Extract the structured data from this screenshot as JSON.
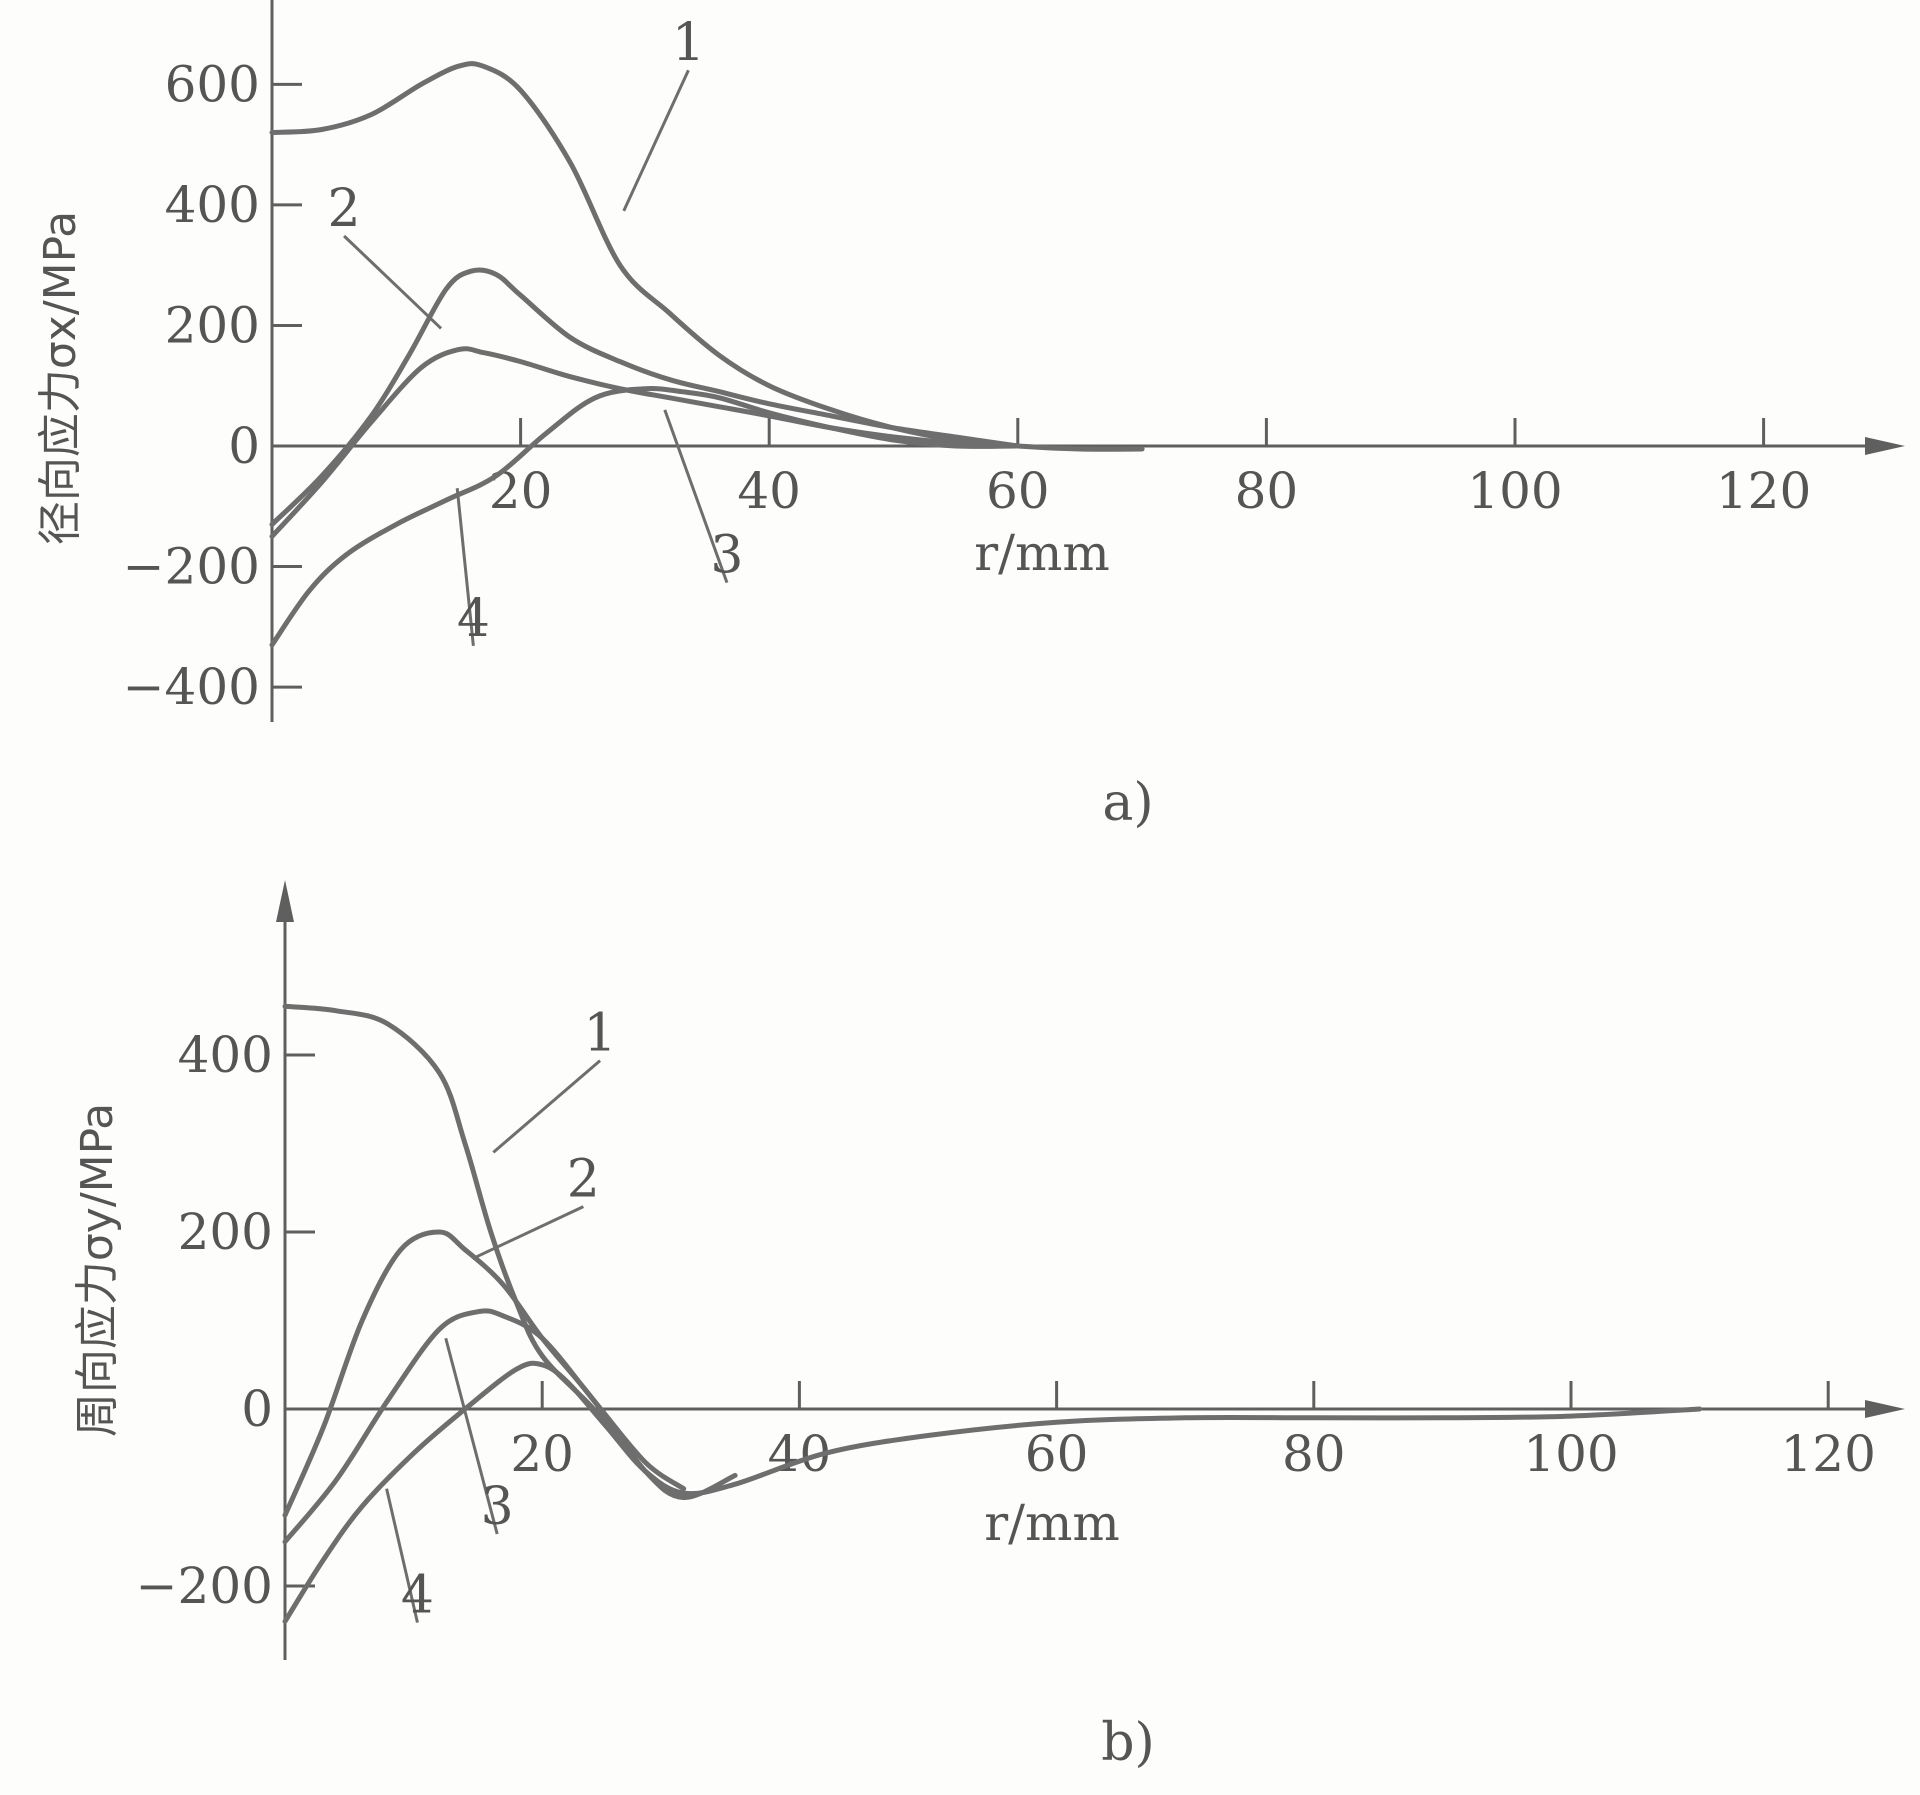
{
  "chart_data": [
    {
      "type": "line",
      "panel_label": "a)",
      "xlabel": "r/mm",
      "ylabel": "径向应力σx/MPa",
      "x_ticks": [
        20,
        40,
        60,
        80,
        100,
        120
      ],
      "y_ticks": [
        -400,
        -200,
        0,
        200,
        400,
        600
      ],
      "x_tick_labels": [
        "20",
        "40",
        "60",
        "80",
        "100",
        "120"
      ],
      "y_tick_labels": [
        "−400",
        "−200",
        "0",
        "200",
        "400",
        "600"
      ],
      "xlim": [
        0,
        130
      ],
      "ylim": [
        -450,
        650
      ],
      "series": [
        {
          "name": "1",
          "x": [
            0,
            4,
            8,
            12,
            15,
            17,
            20,
            24,
            28,
            32,
            36,
            40,
            45,
            50,
            55,
            60,
            65,
            70
          ],
          "y": [
            520,
            525,
            550,
            600,
            630,
            630,
            590,
            470,
            300,
            220,
            150,
            100,
            60,
            30,
            10,
            0,
            -5,
            -5
          ]
        },
        {
          "name": "2",
          "x": [
            0,
            4,
            8,
            11,
            14,
            16,
            18,
            20,
            24,
            28,
            32,
            36,
            40,
            45,
            50,
            55,
            60
          ],
          "y": [
            -130,
            -50,
            50,
            150,
            260,
            290,
            285,
            250,
            180,
            140,
            110,
            90,
            70,
            50,
            30,
            15,
            0
          ]
        },
        {
          "name": "3",
          "x": [
            0,
            4,
            8,
            12,
            15,
            17,
            20,
            24,
            28,
            32,
            36,
            40,
            45,
            50,
            55,
            60
          ],
          "y": [
            -150,
            -60,
            40,
            130,
            160,
            155,
            140,
            115,
            95,
            80,
            65,
            50,
            30,
            15,
            5,
            0
          ]
        },
        {
          "name": "4",
          "x": [
            0,
            3,
            6,
            10,
            14,
            18,
            22,
            26,
            30,
            33,
            36,
            40,
            45,
            50,
            55,
            60
          ],
          "y": [
            -330,
            -240,
            -180,
            -130,
            -90,
            -50,
            20,
            80,
            95,
            90,
            80,
            55,
            30,
            10,
            0,
            0
          ]
        }
      ],
      "annotations": [
        {
          "text": "1",
          "x": 33.5,
          "y": 640,
          "to_x": 28.3,
          "to_y": 390
        },
        {
          "text": "2",
          "x": 5.8,
          "y": 365,
          "to_x": 13.6,
          "to_y": 195
        },
        {
          "text": "3",
          "x": 36.6,
          "y": -210,
          "to_x": 31.6,
          "to_y": 60
        },
        {
          "text": "4",
          "x": 16.2,
          "y": -315,
          "to_x": 14.9,
          "to_y": -70
        }
      ]
    },
    {
      "type": "line",
      "panel_label": "b)",
      "xlabel": "r/mm",
      "ylabel": "周向应力σy/MPa",
      "x_ticks": [
        20,
        40,
        60,
        80,
        100,
        120
      ],
      "y_ticks": [
        -200,
        0,
        200,
        400
      ],
      "x_tick_labels": [
        "20",
        "40",
        "60",
        "80",
        "100",
        "120"
      ],
      "y_tick_labels": [
        "−200",
        "0",
        "200",
        "400"
      ],
      "xlim": [
        0,
        130
      ],
      "ylim": [
        -300,
        600
      ],
      "series": [
        {
          "name": "1",
          "x": [
            0,
            4,
            8,
            12,
            14,
            16,
            18,
            20,
            24,
            28,
            31
          ],
          "y": [
            455,
            450,
            435,
            380,
            300,
            200,
            120,
            60,
            0,
            -70,
            -100
          ]
        },
        {
          "name": "2",
          "x": [
            0,
            3,
            6,
            9,
            12,
            14,
            17,
            20,
            24,
            28,
            31,
            35
          ],
          "y": [
            -120,
            -20,
            100,
            180,
            200,
            180,
            140,
            80,
            10,
            -70,
            -100,
            -75
          ]
        },
        {
          "name": "3",
          "x": [
            0,
            4,
            8,
            12,
            15,
            17,
            20,
            24,
            28,
            31
          ],
          "y": [
            -150,
            -80,
            10,
            90,
            110,
            105,
            80,
            10,
            -60,
            -90
          ]
        },
        {
          "name": "4",
          "x": [
            0,
            3,
            6,
            10,
            14,
            18,
            20,
            22,
            25,
            28,
            31,
            35,
            42,
            50,
            60,
            70,
            80,
            90,
            100,
            110
          ],
          "y": [
            -240,
            -170,
            -110,
            -50,
            0,
            45,
            50,
            30,
            -20,
            -70,
            -95,
            -85,
            -50,
            -30,
            -15,
            -10,
            -10,
            -10,
            -8,
            0
          ]
        }
      ],
      "annotations": [
        {
          "text": "1",
          "x": 24.5,
          "y": 405,
          "to_x": 16.2,
          "to_y": 290
        },
        {
          "text": "2",
          "x": 23.2,
          "y": 240,
          "to_x": 14.6,
          "to_y": 170
        },
        {
          "text": "3",
          "x": 16.5,
          "y": -130,
          "to_x": 12.5,
          "to_y": 80
        },
        {
          "text": "4",
          "x": 10.3,
          "y": -230,
          "to_x": 7.9,
          "to_y": -90
        }
      ]
    }
  ]
}
